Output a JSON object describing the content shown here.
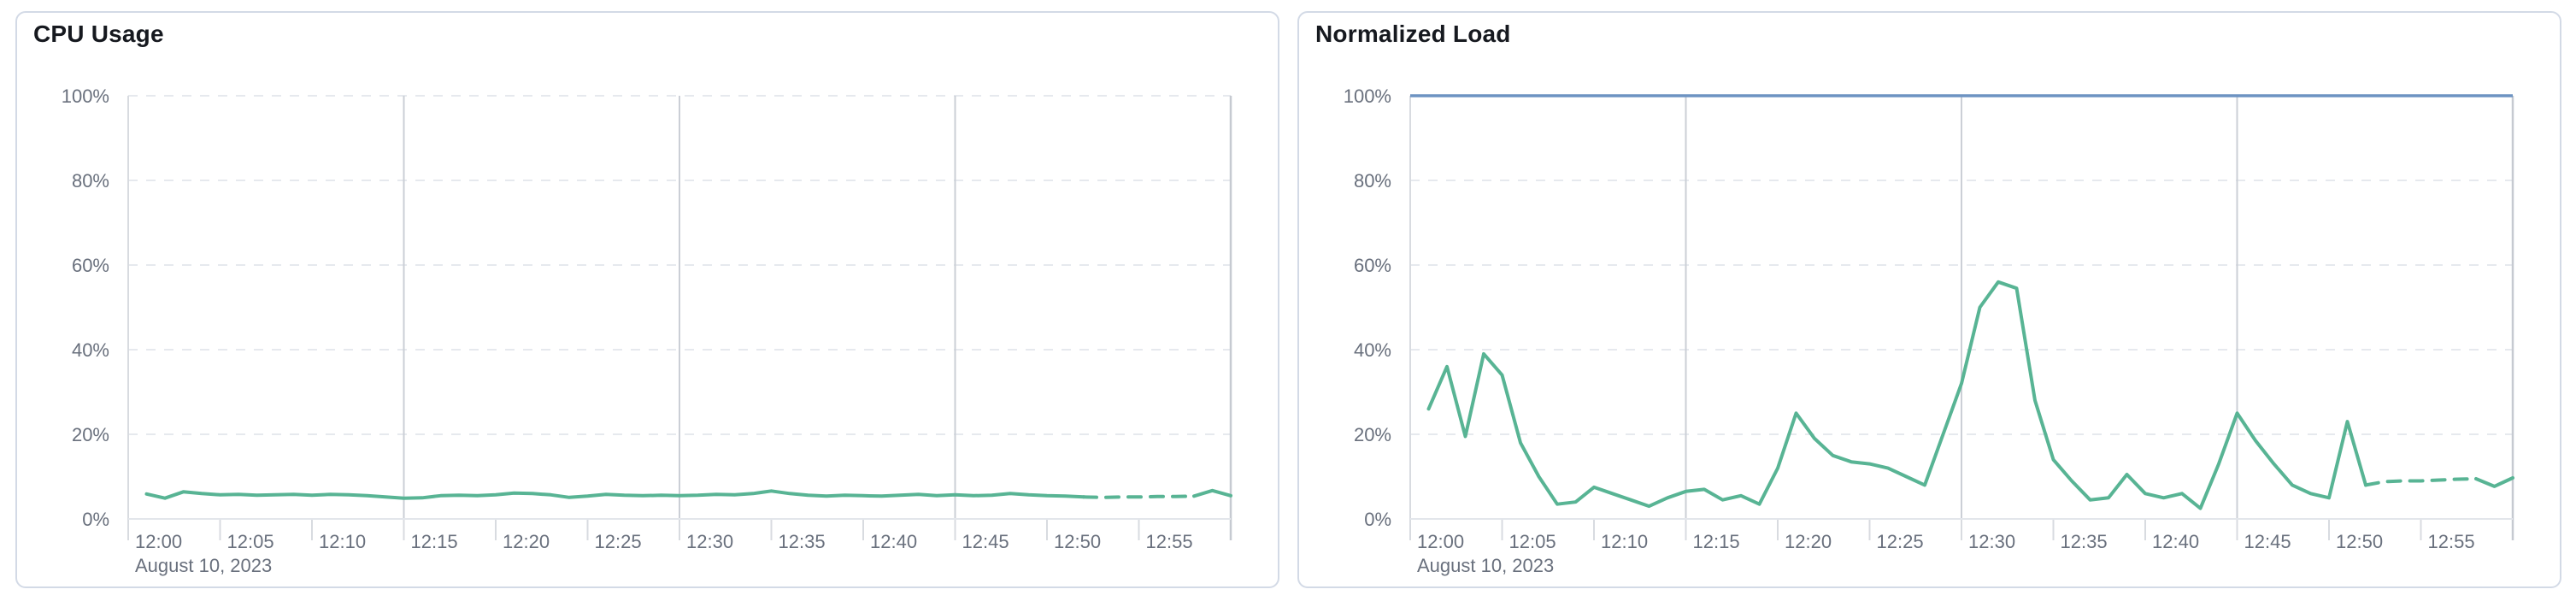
{
  "theme": {
    "series_green": "#58b494",
    "threshold_blue": "#6d93c2",
    "axis_text": "#69707d",
    "title_text": "#16191f",
    "panel_border": "#d3dae6",
    "h_gridline_dashed": "#e6e9ee",
    "v_gridline_major": "#cbcfd6",
    "end_boundary_line": "#c6cad1",
    "left_boundary_line": "#d8dbe0",
    "minor_tick": "#d8dbe0",
    "axis_baseline": "#e3e6eb"
  },
  "chart_data": [
    {
      "type": "line",
      "title": "CPU Usage",
      "x": {
        "tick_labels": [
          "12:00",
          "12:05",
          "12:10",
          "12:15",
          "12:20",
          "12:25",
          "12:30",
          "12:35",
          "12:40",
          "12:45",
          "12:50",
          "12:55"
        ],
        "tick_interval_minutes": 5,
        "major_gridline_minutes": [
          15,
          30,
          45
        ],
        "range_minutes": [
          0,
          60
        ],
        "date_label": "August 10, 2023"
      },
      "y": {
        "ticks": [
          0,
          20,
          40,
          60,
          80,
          100
        ],
        "tick_labels": [
          "0%",
          "20%",
          "40%",
          "60%",
          "80%",
          "100%"
        ],
        "range": [
          0,
          100
        ]
      },
      "threshold_line": null,
      "series": [
        {
          "name": "CPU Usage",
          "color": "#58b494",
          "start_minute": 1,
          "dashed_minute_range": [
            52,
            58
          ],
          "values": [
            5.9,
            4.9,
            6.4,
            6.0,
            5.7,
            5.8,
            5.6,
            5.7,
            5.8,
            5.6,
            5.8,
            5.7,
            5.5,
            5.2,
            4.9,
            5.0,
            5.5,
            5.6,
            5.5,
            5.7,
            6.1,
            6.0,
            5.7,
            5.1,
            5.4,
            5.8,
            5.6,
            5.5,
            5.6,
            5.5,
            5.6,
            5.8,
            5.7,
            6.0,
            6.6,
            6.0,
            5.6,
            5.4,
            5.6,
            5.5,
            5.4,
            5.6,
            5.8,
            5.5,
            5.7,
            5.5,
            5.6,
            6.0,
            5.7,
            5.5,
            5.4,
            5.2,
            5.1,
            5.2,
            5.2,
            5.3,
            5.3,
            5.4,
            6.7,
            5.5
          ]
        }
      ]
    },
    {
      "type": "line",
      "title": "Normalized Load",
      "x": {
        "tick_labels": [
          "12:00",
          "12:05",
          "12:10",
          "12:15",
          "12:20",
          "12:25",
          "12:30",
          "12:35",
          "12:40",
          "12:45",
          "12:50",
          "12:55"
        ],
        "tick_interval_minutes": 5,
        "major_gridline_minutes": [
          15,
          30,
          45
        ],
        "range_minutes": [
          0,
          60
        ],
        "date_label": "August 10, 2023"
      },
      "y": {
        "ticks": [
          0,
          20,
          40,
          60,
          80,
          100
        ],
        "tick_labels": [
          "0%",
          "20%",
          "40%",
          "60%",
          "80%",
          "100%"
        ],
        "range": [
          0,
          100
        ]
      },
      "threshold_line": {
        "value": 100,
        "color": "#6d93c2"
      },
      "series": [
        {
          "name": "Normalized Load",
          "color": "#58b494",
          "start_minute": 1,
          "dashed_minute_range": [
            52,
            58
          ],
          "values": [
            26,
            36,
            19.5,
            39,
            34,
            18,
            10,
            3.5,
            4,
            7.5,
            6,
            4.5,
            3,
            5,
            6.5,
            7,
            4.5,
            5.5,
            3.5,
            12,
            25,
            19,
            15,
            13.5,
            13,
            12,
            10,
            8,
            20,
            32,
            50,
            56,
            54.5,
            28,
            14,
            9,
            4.5,
            5,
            10.5,
            6,
            5,
            6,
            2.5,
            13,
            25,
            18.5,
            13,
            8,
            6,
            5,
            23,
            8,
            8.8,
            9,
            9,
            9.2,
            9.4,
            9.5,
            7.7,
            9.7
          ]
        }
      ]
    }
  ]
}
